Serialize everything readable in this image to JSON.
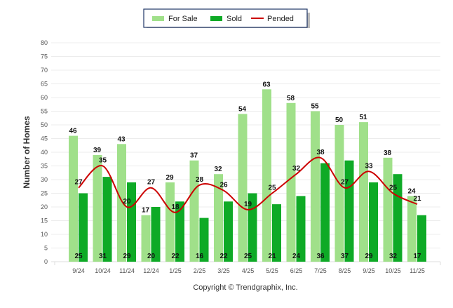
{
  "chart_data": {
    "type": "bar",
    "title": "",
    "xlabel": "",
    "ylabel": "Number of Homes",
    "ylim": [
      0,
      80
    ],
    "ytick_step": 5,
    "grid": true,
    "legend_placement": "top-center",
    "categories": [
      "9/24",
      "10/24",
      "11/24",
      "12/24",
      "1/25",
      "2/25",
      "3/25",
      "4/25",
      "5/25",
      "6/25",
      "7/25",
      "8/25",
      "9/25",
      "10/25",
      "11/25"
    ],
    "series": [
      {
        "name": "For Sale",
        "type": "bar",
        "color": "#a0e08a",
        "values": [
          46,
          39,
          43,
          17,
          29,
          37,
          32,
          54,
          63,
          58,
          55,
          50,
          51,
          38,
          24
        ]
      },
      {
        "name": "Sold",
        "type": "bar",
        "color": "#0eaa26",
        "values": [
          25,
          31,
          29,
          20,
          22,
          16,
          22,
          25,
          21,
          24,
          36,
          37,
          29,
          32,
          17
        ]
      },
      {
        "name": "Pended",
        "type": "line",
        "color": "#cc0000",
        "values": [
          27,
          35,
          20,
          27,
          18,
          28,
          26,
          19,
          25,
          32,
          38,
          27,
          33,
          25,
          21
        ]
      }
    ],
    "footer": "Copyright © Trendgraphix, Inc."
  }
}
